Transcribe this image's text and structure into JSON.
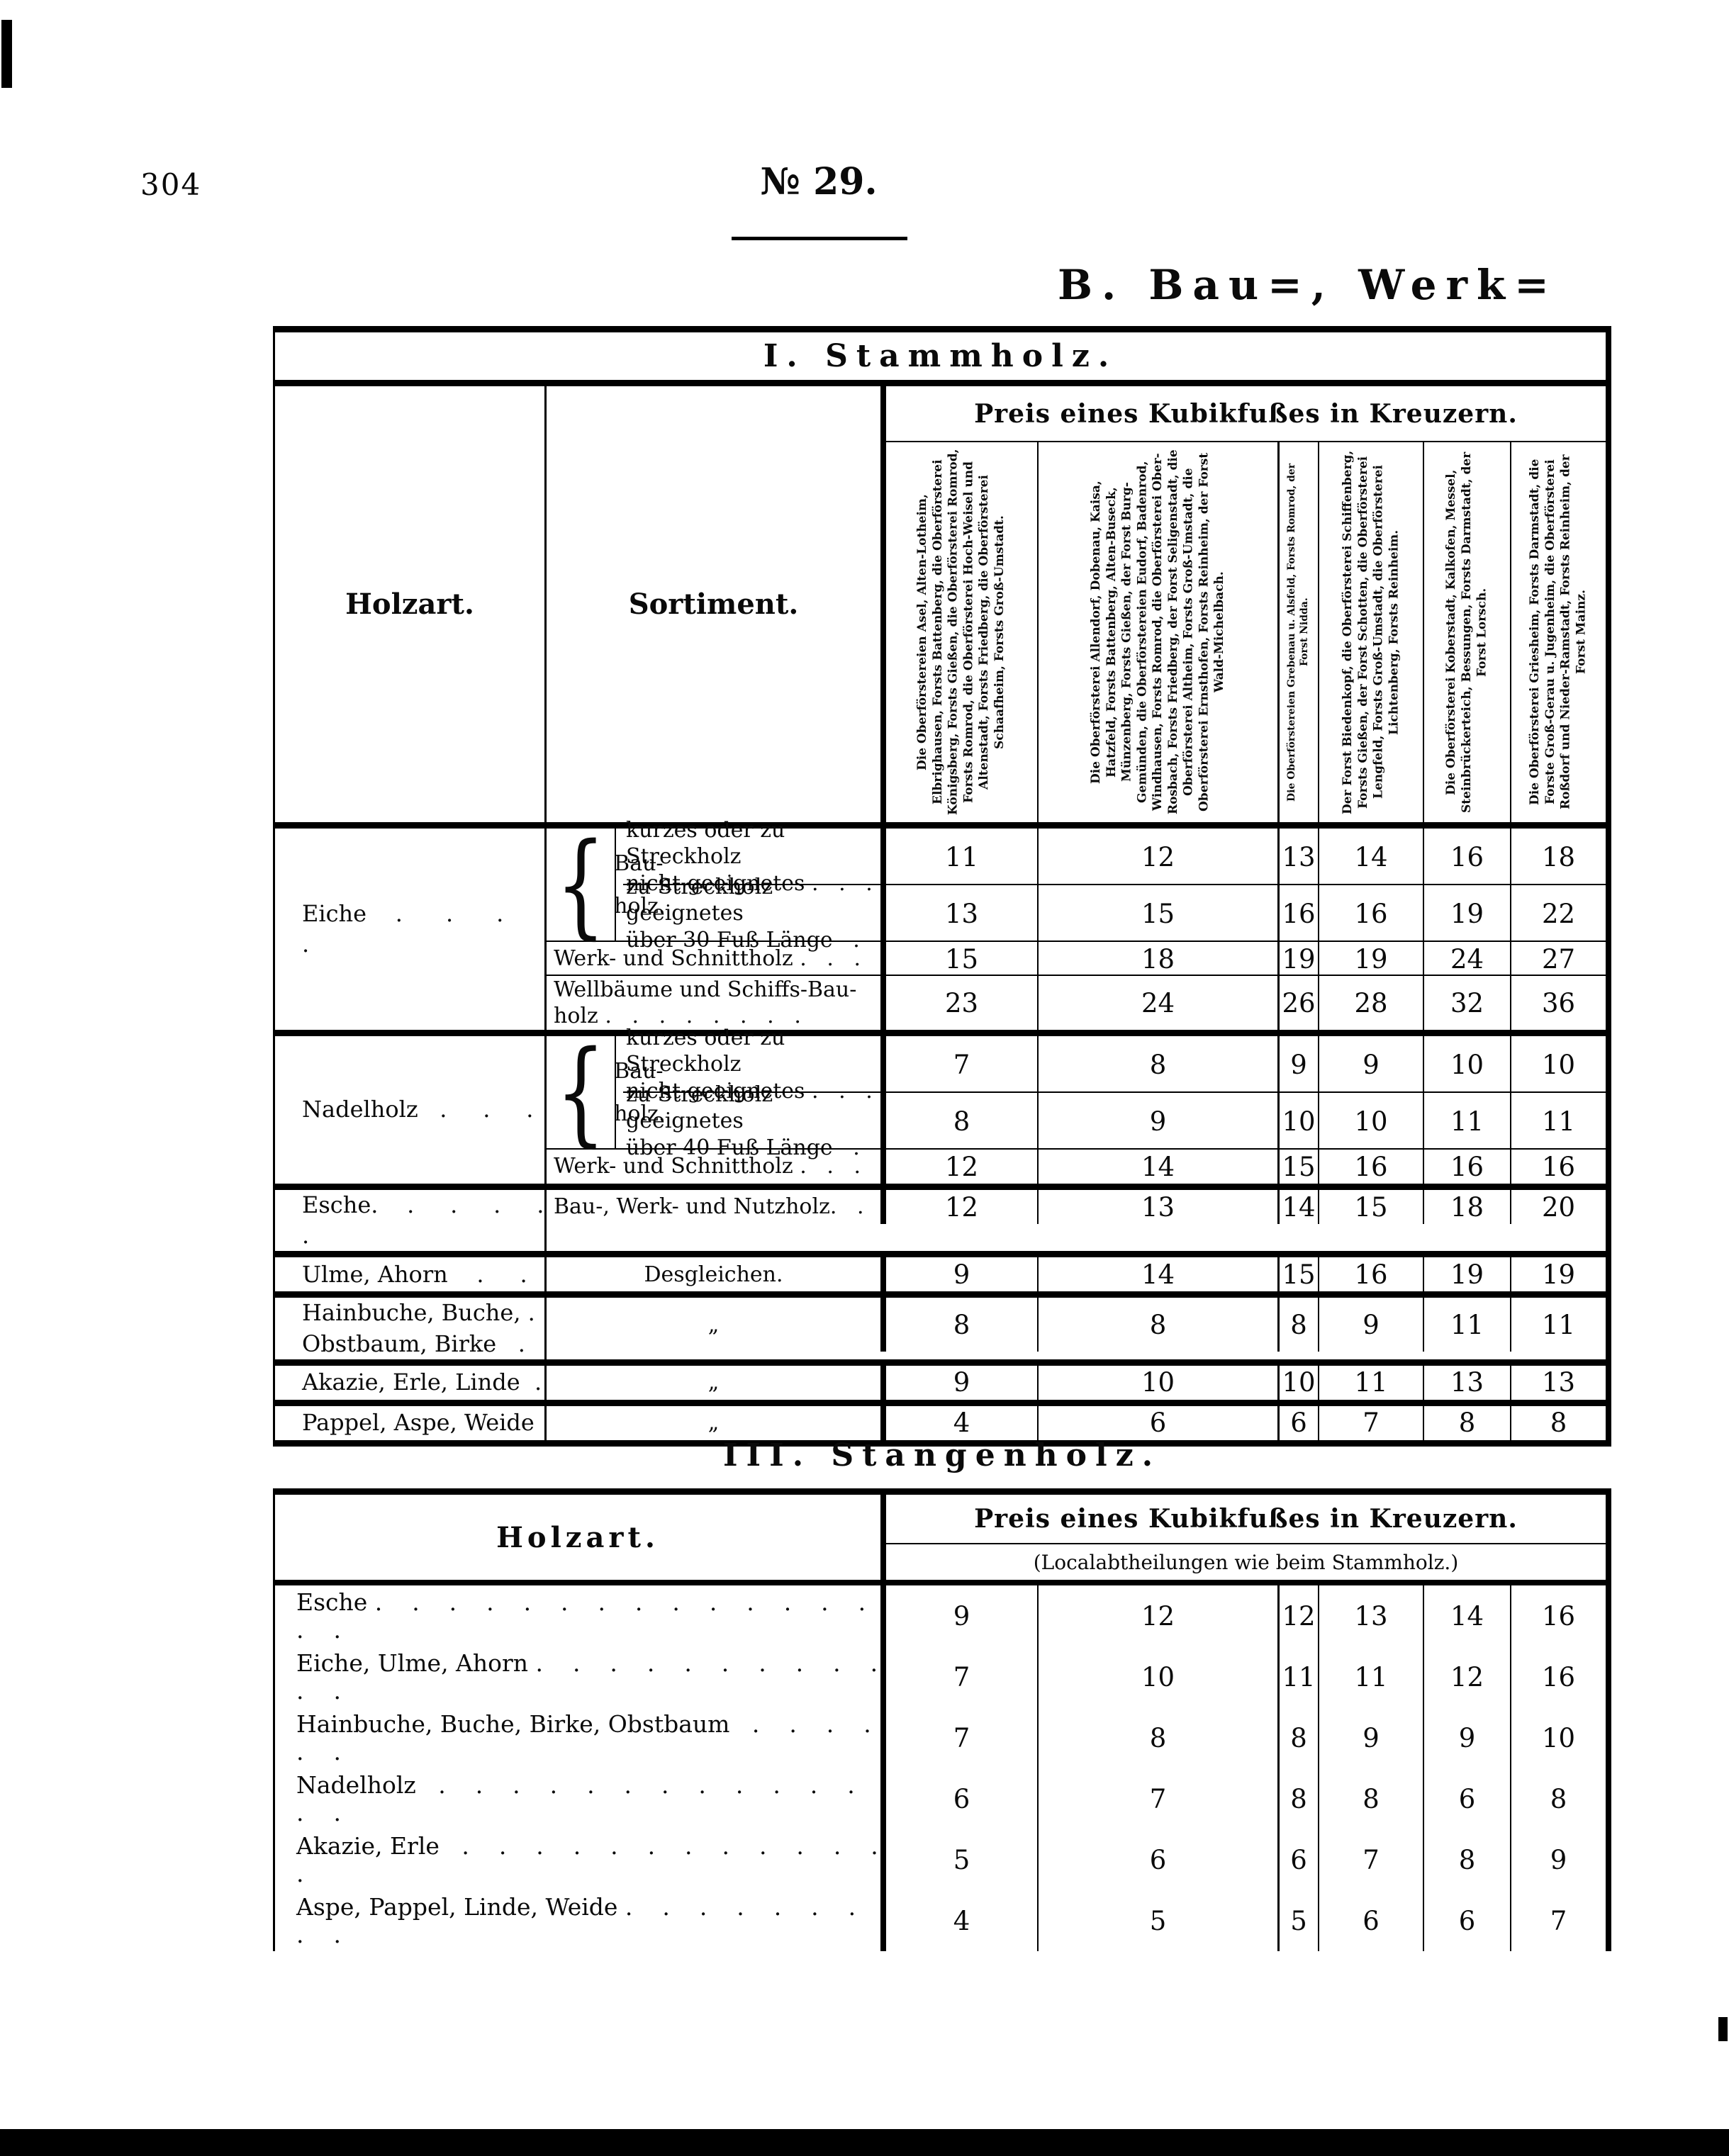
{
  "page": {
    "number": "304",
    "issue": "№ 29.",
    "section_heading": "B.  Bau=,  Werk="
  },
  "stammholz": {
    "title": "I. Stammholz.",
    "holzart_label": "Holzart.",
    "sortiment_label": "Sortiment.",
    "price_header": "Preis eines Kubikfußes in Kreuzern.",
    "brace_label": "Bau-\nholz.",
    "districts": [
      "Die Oberförstereien Asel, Alten-Lotheim, Elbrighausen, Forsts Battenberg, die Oberförsterei Königsberg, Forsts Gießen, die Oberförsterei Romrod, Forsts Romrod, die Oberförsterei Hoch-Weisel und Altenstadt, Forsts Friedberg, die Oberförsterei Schaafheim, Forsts Groß-Umstadt.",
      "Die Oberförsterei Allendorf, Dobenau, Kaisa, Hatzfeld, Forsts Battenberg, Alten-Buseck, Münzenberg, Forsts Gießen, der Forst Burg-Gemünden, die Oberförstereien Eudorf, Badenrod, Windhausen, Forsts Romrod, die Oberförsterei Ober-Rosbach, Forsts Friedberg, der Forst Seligenstadt, die Oberförsterei Altheim, Forsts Groß-Umstadt, die Oberförsterei Ernsthofen, Forsts Reinheim, der Forst Wald-Michelbach.",
      "Die Oberförstereien Grebenau u. Alsfeld, Forsts Romrod, der Forst Nidda.",
      "Der Forst Biedenkopf, die Oberförsterei Schiffenberg, Forsts Gießen, der Forst Schotten, die Oberförsterei Lengfeld, Forsts Groß-Umstadt, die Oberförsterei Lichtenberg, Forsts Reinheim.",
      "Die Oberförsterei Koberstadt, Kalkofen, Messel, Steinbrückerteich, Bessungen, Forsts Darmstadt, der Forst Lorsch.",
      "Die Oberförsterei Griesheim, Forsts Darmstadt, die Forste Groß-Gerau u. Jugenheim, die Oberförsterei Roßdorf und Nieder-Ramstadt, Forsts Reinheim, der Forst Mainz."
    ],
    "blocks": [
      {
        "species": "Eiche    .      .      .      .",
        "has_brace": true,
        "rows": [
          {
            "brace": true,
            "sortiment": "kurzes oder zu Streckholz\nnicht geeignetes .   .   .",
            "values": [
              11,
              12,
              13,
              14,
              16,
              18
            ]
          },
          {
            "brace": true,
            "sortiment": "zu Streckholz geeignetes\nüber 30 Fuß Länge   .",
            "values": [
              13,
              15,
              16,
              16,
              19,
              22
            ]
          },
          {
            "sortiment": "Werk- und Schnittholz .   .   .",
            "values": [
              15,
              18,
              19,
              19,
              24,
              27
            ]
          },
          {
            "sortiment": "Wellbäume und Schiffs-Bau-\nholz .   .   .   .   .   .   .   .",
            "values": [
              23,
              24,
              26,
              28,
              32,
              36
            ]
          }
        ]
      },
      {
        "species": "Nadelholz   .     .     .",
        "has_brace": true,
        "rows": [
          {
            "brace": true,
            "sortiment": "kurzes oder zu Streckholz\nnicht geeignetes .   .   .",
            "values": [
              7,
              8,
              9,
              9,
              10,
              10
            ]
          },
          {
            "brace": true,
            "sortiment": "zu Streckholz geeignetes\nüber 40 Fuß Länge   .",
            "values": [
              8,
              9,
              10,
              10,
              11,
              11
            ]
          },
          {
            "sortiment": "Werk- und Schnittholz .   .   .",
            "values": [
              12,
              14,
              15,
              16,
              16,
              16
            ]
          }
        ]
      },
      {
        "species": "Esche.    .     .     .     .    .",
        "rows": [
          {
            "sortiment": "Bau-, Werk- und Nutzholz.   .",
            "values": [
              12,
              13,
              14,
              15,
              18,
              20
            ]
          }
        ]
      },
      {
        "species": "Ulme, Ahorn    .     .",
        "rows": [
          {
            "sortiment": "Desgleichen.",
            "values": [
              9,
              14,
              15,
              16,
              19,
              19
            ]
          }
        ]
      },
      {
        "species": "Hainbuche, Buche, .\nObstbaum, Birke   .",
        "rows": [
          {
            "sortiment": "„",
            "values": [
              8,
              8,
              8,
              9,
              11,
              11
            ]
          }
        ]
      },
      {
        "species": "Akazie, Erle, Linde  .",
        "rows": [
          {
            "sortiment": "„",
            "values": [
              9,
              10,
              10,
              11,
              13,
              13
            ]
          }
        ]
      },
      {
        "species": "Pappel, Aspe, Weide",
        "rows": [
          {
            "sortiment": "„",
            "values": [
              4,
              6,
              6,
              7,
              8,
              8
            ]
          }
        ]
      }
    ]
  },
  "stangenholz": {
    "title": "III. Stangenholz.",
    "holzart_label": "Holzart.",
    "price_header": "Preis eines Kubikfußes in Kreuzern.",
    "subnote": "(Localabtheilungen wie beim Stammholz.)",
    "rows": [
      {
        "label": "Esche .    .    .    .    .    .    .    .    .    .    .    .    .    .    .    .",
        "values": [
          9,
          12,
          12,
          13,
          14,
          16
        ]
      },
      {
        "label": "Eiche, Ulme, Ahorn .    .    .    .    .    .    .    .    .    .    .    .",
        "values": [
          7,
          10,
          11,
          11,
          12,
          16
        ]
      },
      {
        "label": "Hainbuche, Buche, Birke, Obstbaum   .    .    .    .    .    .",
        "values": [
          7,
          8,
          8,
          9,
          9,
          10
        ]
      },
      {
        "label": "Nadelholz   .    .    .    .    .    .    .    .    .    .    .    .    .    .",
        "values": [
          6,
          7,
          8,
          8,
          6,
          8
        ]
      },
      {
        "label": "Akazie, Erle   .    .    .    .    .    .    .    .    .    .    .    .    .",
        "values": [
          5,
          6,
          6,
          7,
          8,
          9
        ]
      },
      {
        "label": "Aspe, Pappel, Linde, Weide .    .    .    .    .    .    .    .    .",
        "values": [
          4,
          5,
          5,
          6,
          6,
          7
        ]
      }
    ]
  }
}
